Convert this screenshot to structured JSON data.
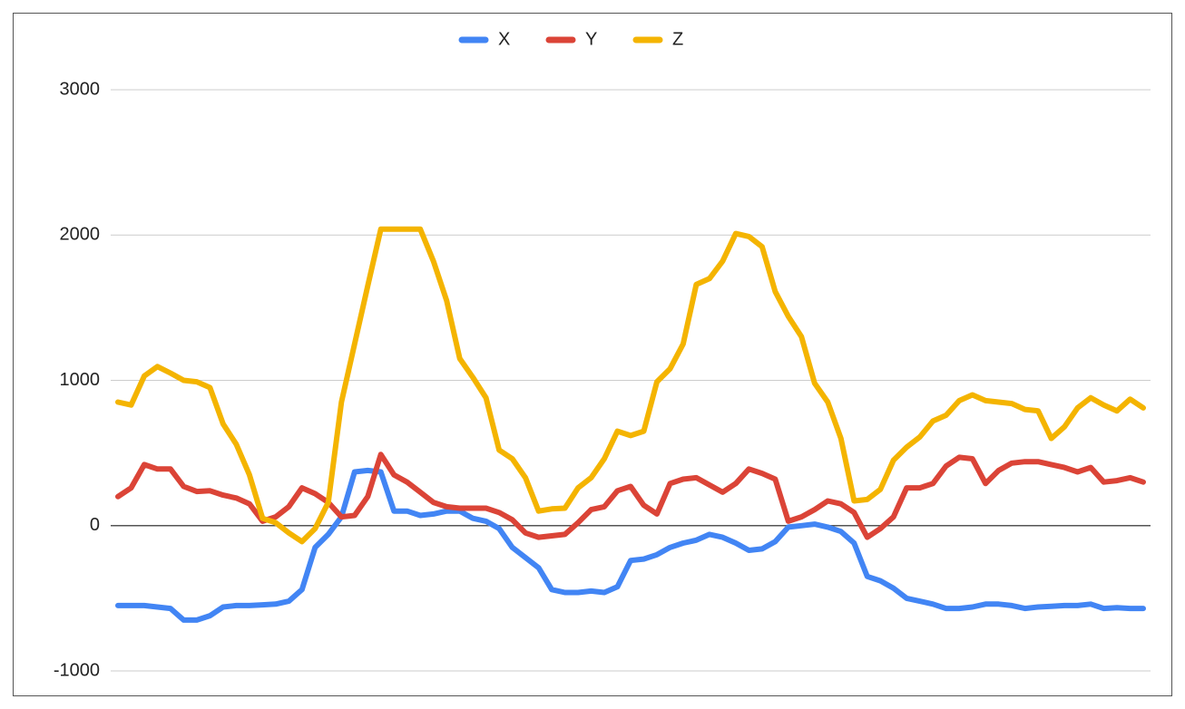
{
  "chart_data": {
    "type": "line",
    "categories": [
      null,
      null,
      null,
      null,
      null,
      null,
      null,
      null,
      null,
      null,
      null,
      null,
      null,
      null,
      null,
      null,
      null,
      null,
      null,
      null,
      null,
      null,
      null,
      null,
      null,
      null,
      null,
      null,
      null,
      null,
      null,
      null,
      null,
      null,
      null,
      null,
      null,
      null,
      null,
      null,
      null,
      null,
      null,
      null,
      null,
      null,
      null,
      null,
      null,
      null,
      null,
      null,
      null,
      null,
      null,
      null,
      null,
      null,
      null,
      null,
      null,
      null,
      null,
      null,
      null,
      null,
      null,
      null,
      null,
      null,
      null,
      null,
      null,
      null,
      null,
      null,
      null,
      null,
      null
    ],
    "series": [
      {
        "name": "X",
        "color": "#4285f4",
        "values": [
          -550,
          -550,
          -550,
          -560,
          -570,
          -650,
          -650,
          -620,
          -560,
          -550,
          -550,
          -545,
          -540,
          -520,
          -440,
          -150,
          -60,
          60,
          370,
          380,
          370,
          100,
          100,
          70,
          80,
          100,
          100,
          50,
          30,
          -20,
          -150,
          -220,
          -290,
          -440,
          -460,
          -460,
          -450,
          -460,
          -420,
          -240,
          -230,
          -200,
          -150,
          -120,
          -100,
          -60,
          -80,
          -120,
          -170,
          -160,
          -110,
          -10,
          0,
          10,
          -10,
          -40,
          -120,
          -350,
          -380,
          -430,
          -500,
          -520,
          -540,
          -570,
          -570,
          -560,
          -540,
          -540,
          -550,
          -570,
          -560,
          -555,
          -550,
          -550,
          -540,
          -570,
          -565,
          -570,
          -570
        ]
      },
      {
        "name": "Y",
        "color": "#db4437",
        "values": [
          200,
          260,
          420,
          390,
          390,
          270,
          235,
          240,
          210,
          190,
          150,
          30,
          60,
          130,
          260,
          220,
          160,
          60,
          70,
          200,
          490,
          350,
          300,
          230,
          160,
          130,
          120,
          120,
          120,
          90,
          40,
          -50,
          -80,
          -70,
          -60,
          20,
          110,
          130,
          240,
          270,
          140,
          80,
          290,
          320,
          330,
          280,
          230,
          290,
          390,
          360,
          320,
          30,
          60,
          110,
          170,
          150,
          90,
          -80,
          -20,
          60,
          260,
          260,
          290,
          410,
          470,
          460,
          290,
          380,
          430,
          440,
          440,
          420,
          400,
          370,
          400,
          300,
          310,
          330,
          300
        ]
      },
      {
        "name": "Z",
        "color": "#f4b400",
        "values": [
          850,
          830,
          1030,
          1095,
          1050,
          1000,
          990,
          950,
          700,
          560,
          350,
          50,
          20,
          -50,
          -110,
          -20,
          160,
          850,
          1250,
          1650,
          2040,
          2040,
          2040,
          2040,
          1820,
          1550,
          1150,
          1020,
          880,
          520,
          460,
          330,
          100,
          115,
          120,
          260,
          330,
          460,
          650,
          620,
          650,
          990,
          1080,
          1250,
          1660,
          1700,
          1820,
          2010,
          1990,
          1920,
          1610,
          1440,
          1300,
          980,
          850,
          600,
          170,
          180,
          250,
          450,
          540,
          610,
          720,
          760,
          860,
          900,
          860,
          850,
          840,
          800,
          790,
          600,
          680,
          810,
          880,
          830,
          790,
          870,
          810
        ]
      }
    ],
    "ylim": [
      -1000,
      3000
    ],
    "yticks": [
      -1000,
      0,
      1000,
      2000,
      3000
    ],
    "grid": true,
    "legend": "top"
  }
}
